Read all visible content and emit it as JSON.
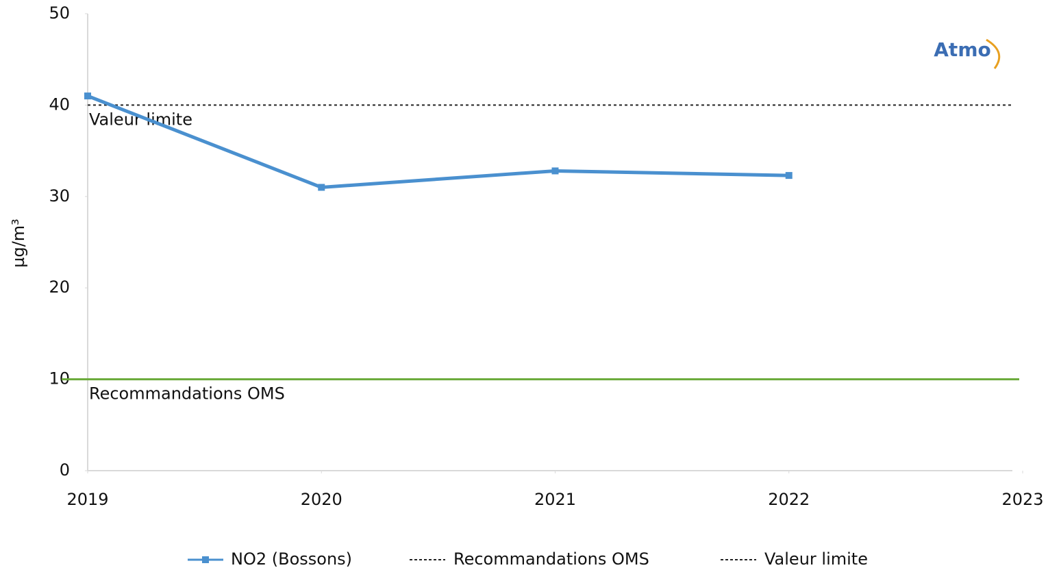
{
  "chart_data": {
    "type": "line",
    "y_label": "µg/m³",
    "logo": "Atmo",
    "x": [
      2019,
      2020,
      2021,
      2022
    ],
    "xlim": [
      2019,
      2023
    ],
    "xticks": [
      2019,
      2020,
      2021,
      2022,
      2023
    ],
    "ylim": [
      0,
      50
    ],
    "yticks": [
      0,
      10,
      20,
      30,
      40,
      50
    ],
    "series": [
      {
        "name": "NO2 (Bossons)",
        "color": "#4a90cf",
        "values": [
          41,
          31,
          32.8,
          32.3
        ]
      }
    ],
    "reference_lines": [
      {
        "name": "Recommandations OMS",
        "value": 10,
        "color": "#6aaa3a"
      },
      {
        "name": "Valeur limite",
        "value": 40,
        "color": "#222222"
      }
    ]
  }
}
